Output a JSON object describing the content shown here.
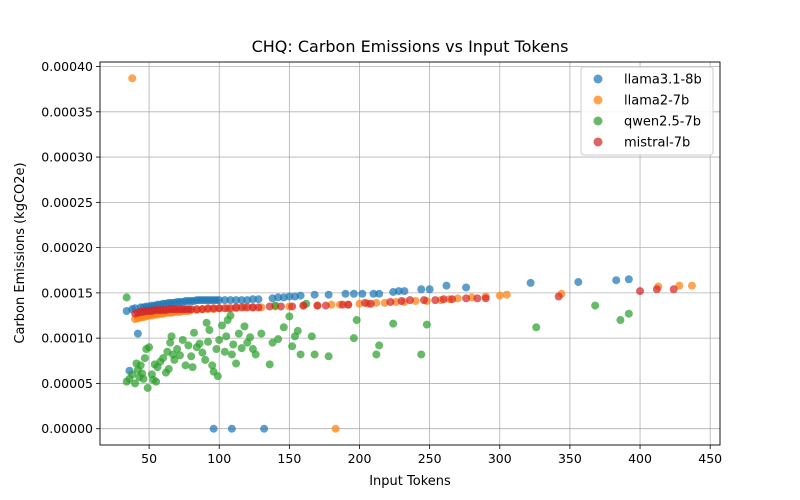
{
  "chart_data": {
    "type": "scatter",
    "title": "CHQ: Carbon Emissions vs Input Tokens",
    "xlabel": "Input Tokens",
    "ylabel": "Carbon Emissions (kgCO2e)",
    "xlim": [
      15,
      457
    ],
    "ylim": [
      -1.8e-05,
      0.000405
    ],
    "xticks": [
      50,
      100,
      150,
      200,
      250,
      300,
      350,
      400,
      450
    ],
    "yticks": [
      0,
      5e-05,
      0.0001,
      0.00015,
      0.0002,
      0.00025,
      0.0003,
      0.00035,
      0.0004
    ],
    "ytick_labels": [
      "0.00000",
      "0.00005",
      "0.00010",
      "0.00015",
      "0.00020",
      "0.00025",
      "0.00030",
      "0.00035",
      "0.00040"
    ],
    "grid": true,
    "legend_position": "top-right",
    "series": [
      {
        "name": "llama3.1-8b",
        "color": "#1f77b4",
        "points": [
          [
            34,
            0.00013
          ],
          [
            36,
            6.4e-05
          ],
          [
            38,
            0.000132
          ],
          [
            40,
            0.000133
          ],
          [
            42,
            0.000105
          ],
          [
            44,
            0.000134
          ],
          [
            46,
            0.000134
          ],
          [
            48,
            0.000135
          ],
          [
            50,
            0.000135
          ],
          [
            52,
            0.000136
          ],
          [
            54,
            0.000136
          ],
          [
            56,
            0.000137
          ],
          [
            58,
            0.000137
          ],
          [
            60,
            0.000138
          ],
          [
            62,
            0.000138
          ],
          [
            64,
            0.000139
          ],
          [
            66,
            0.000139
          ],
          [
            68,
            0.000139
          ],
          [
            70,
            0.00014
          ],
          [
            72,
            0.00014
          ],
          [
            74,
            0.00014
          ],
          [
            76,
            0.000141
          ],
          [
            78,
            0.000141
          ],
          [
            80,
            0.000141
          ],
          [
            82,
            0.000141
          ],
          [
            84,
            0.000142
          ],
          [
            86,
            0.000142
          ],
          [
            88,
            0.000142
          ],
          [
            90,
            0.000142
          ],
          [
            92,
            0.000142
          ],
          [
            94,
            0.000142
          ],
          [
            96,
            0.000142
          ],
          [
            98,
            0.000142
          ],
          [
            100,
            0.000142
          ],
          [
            104,
            0.000142
          ],
          [
            108,
            0.000142
          ],
          [
            112,
            0.000142
          ],
          [
            116,
            0.000142
          ],
          [
            120,
            0.000142
          ],
          [
            124,
            0.000143
          ],
          [
            128,
            0.000143
          ],
          [
            138,
            0.000144
          ],
          [
            142,
            0.000145
          ],
          [
            146,
            0.000145
          ],
          [
            150,
            0.000146
          ],
          [
            154,
            0.000146
          ],
          [
            158,
            0.000147
          ],
          [
            168,
            0.000148
          ],
          [
            178,
            0.000148
          ],
          [
            190,
            0.000149
          ],
          [
            196,
            0.000149
          ],
          [
            202,
            0.000149
          ],
          [
            210,
            0.000149
          ],
          [
            214,
            0.000149
          ],
          [
            224,
            0.000151
          ],
          [
            228,
            0.000152
          ],
          [
            232,
            0.000152
          ],
          [
            244,
            0.000154
          ],
          [
            250,
            0.000154
          ],
          [
            262,
            0.000158
          ],
          [
            276,
            0.000156
          ],
          [
            322,
            0.000161
          ],
          [
            356,
            0.000162
          ],
          [
            383,
            0.000164
          ],
          [
            392,
            0.000165
          ],
          [
            96,
            0.0
          ],
          [
            109,
            0.0
          ],
          [
            132,
            0.0
          ]
        ]
      },
      {
        "name": "llama2-7b",
        "color": "#ff7f0e",
        "points": [
          [
            38,
            0.000387
          ],
          [
            40,
            0.000121
          ],
          [
            42,
            0.000122
          ],
          [
            44,
            0.000123
          ],
          [
            46,
            0.000123
          ],
          [
            48,
            0.000124
          ],
          [
            50,
            0.000125
          ],
          [
            52,
            0.000125
          ],
          [
            54,
            0.000126
          ],
          [
            56,
            0.000126
          ],
          [
            58,
            0.000127
          ],
          [
            60,
            0.000127
          ],
          [
            62,
            0.000128
          ],
          [
            64,
            0.000128
          ],
          [
            66,
            0.000128
          ],
          [
            68,
            0.000129
          ],
          [
            70,
            0.000129
          ],
          [
            72,
            0.000129
          ],
          [
            74,
            0.00013
          ],
          [
            76,
            0.00013
          ],
          [
            78,
            0.00013
          ],
          [
            80,
            0.000131
          ],
          [
            84,
            0.000131
          ],
          [
            88,
            0.000132
          ],
          [
            92,
            0.000132
          ],
          [
            96,
            0.000132
          ],
          [
            100,
            0.000133
          ],
          [
            106,
            0.000133
          ],
          [
            112,
            0.000133
          ],
          [
            118,
            0.000134
          ],
          [
            124,
            0.000134
          ],
          [
            130,
            0.000134
          ],
          [
            140,
            0.000135
          ],
          [
            150,
            0.000135
          ],
          [
            160,
            0.000136
          ],
          [
            170,
            0.000136
          ],
          [
            180,
            0.000137
          ],
          [
            186,
            0.000137
          ],
          [
            192,
            0.000137
          ],
          [
            200,
            0.000138
          ],
          [
            206,
            0.000138
          ],
          [
            212,
            0.000139
          ],
          [
            218,
            0.000139
          ],
          [
            226,
            0.00014
          ],
          [
            232,
            0.00014
          ],
          [
            240,
            0.000141
          ],
          [
            248,
            0.000141
          ],
          [
            258,
            0.000142
          ],
          [
            264,
            0.000143
          ],
          [
            270,
            0.000144
          ],
          [
            280,
            0.000145
          ],
          [
            290,
            0.000146
          ],
          [
            300,
            0.000147
          ],
          [
            305,
            0.000148
          ],
          [
            344,
            0.000149
          ],
          [
            413,
            0.000157
          ],
          [
            428,
            0.000158
          ],
          [
            437,
            0.000158
          ],
          [
            183,
            0.0
          ]
        ]
      },
      {
        "name": "qwen2.5-7b",
        "color": "#2ca02c",
        "points": [
          [
            34,
            0.000145
          ],
          [
            34,
            5.2e-05
          ],
          [
            36,
            5.5e-05
          ],
          [
            38,
            6e-05
          ],
          [
            40,
            5e-05
          ],
          [
            41,
            7.2e-05
          ],
          [
            42,
            6.5e-05
          ],
          [
            43,
            5.7e-05
          ],
          [
            44,
            7e-05
          ],
          [
            45,
            6.1e-05
          ],
          [
            46,
            5.5e-05
          ],
          [
            47,
            7.8e-05
          ],
          [
            48,
            8.8e-05
          ],
          [
            49,
            4.5e-05
          ],
          [
            50,
            9e-05
          ],
          [
            52,
            6e-05
          ],
          [
            53,
            5.4e-05
          ],
          [
            54,
            7.1e-05
          ],
          [
            55,
            5.2e-05
          ],
          [
            56,
            6.8e-05
          ],
          [
            58,
            7.4e-05
          ],
          [
            60,
            7.8e-05
          ],
          [
            62,
            6.2e-05
          ],
          [
            63,
            8.5e-05
          ],
          [
            64,
            6.6e-05
          ],
          [
            65,
            9.5e-05
          ],
          [
            66,
            0.000102
          ],
          [
            67,
            8.2e-05
          ],
          [
            68,
            7.6e-05
          ],
          [
            70,
            8.8e-05
          ],
          [
            72,
            8.1e-05
          ],
          [
            74,
            9.8e-05
          ],
          [
            76,
            7e-05
          ],
          [
            78,
            9.2e-05
          ],
          [
            80,
            8e-05
          ],
          [
            81,
            6.8e-05
          ],
          [
            82,
            0.000106
          ],
          [
            84,
            9e-05
          ],
          [
            86,
            9.4e-05
          ],
          [
            88,
            8.4e-05
          ],
          [
            90,
            7.6e-05
          ],
          [
            91,
            0.000117
          ],
          [
            92,
            9.6e-05
          ],
          [
            93,
            0.000109
          ],
          [
            95,
            7e-05
          ],
          [
            96,
            6.3e-05
          ],
          [
            98,
            8.8e-05
          ],
          [
            99,
            5.8e-05
          ],
          [
            100,
            9.8e-05
          ],
          [
            102,
            0.000114
          ],
          [
            104,
            8.5e-05
          ],
          [
            105,
            0.000102
          ],
          [
            106,
            0.00012
          ],
          [
            108,
            0.000125
          ],
          [
            109,
            8.2e-05
          ],
          [
            110,
            9.3e-05
          ],
          [
            112,
            7.2e-05
          ],
          [
            114,
            0.000105
          ],
          [
            116,
            8.9e-05
          ],
          [
            118,
            0.000113
          ],
          [
            120,
            9.5e-05
          ],
          [
            122,
            0.000101
          ],
          [
            124,
            8.8e-05
          ],
          [
            126,
            8.2e-05
          ],
          [
            130,
            0.000105
          ],
          [
            136,
            7.1e-05
          ],
          [
            138,
            9.5e-05
          ],
          [
            140,
            0.000136
          ],
          [
            142,
            9.9e-05
          ],
          [
            146,
            0.000112
          ],
          [
            150,
            0.000124
          ],
          [
            152,
            9.1e-05
          ],
          [
            154,
            0.000102
          ],
          [
            156,
            0.000108
          ],
          [
            158,
            8.2e-05
          ],
          [
            162,
            0.000138
          ],
          [
            166,
            0.000102
          ],
          [
            168,
            8.2e-05
          ],
          [
            178,
            8e-05
          ],
          [
            196,
            0.0001
          ],
          [
            198,
            0.00012
          ],
          [
            212,
            8.2e-05
          ],
          [
            214,
            9.2e-05
          ],
          [
            224,
            0.000116
          ],
          [
            244,
            8.2e-05
          ],
          [
            248,
            0.000115
          ],
          [
            326,
            0.000112
          ],
          [
            368,
            0.000136
          ],
          [
            386,
            0.00012
          ],
          [
            392,
            0.000127
          ]
        ]
      },
      {
        "name": "mistral-7b",
        "color": "#d62728",
        "points": [
          [
            40,
            0.000127
          ],
          [
            42,
            0.000128
          ],
          [
            44,
            0.000129
          ],
          [
            46,
            0.000129
          ],
          [
            48,
            0.00013
          ],
          [
            50,
            0.00013
          ],
          [
            52,
            0.00013
          ],
          [
            54,
            0.000131
          ],
          [
            56,
            0.000131
          ],
          [
            58,
            0.000131
          ],
          [
            60,
            0.000131
          ],
          [
            62,
            0.000131
          ],
          [
            64,
            0.000132
          ],
          [
            66,
            0.000132
          ],
          [
            68,
            0.000132
          ],
          [
            70,
            0.000132
          ],
          [
            72,
            0.000132
          ],
          [
            74,
            0.000132
          ],
          [
            76,
            0.000132
          ],
          [
            78,
            0.000132
          ],
          [
            80,
            0.000132
          ],
          [
            84,
            0.000132
          ],
          [
            88,
            0.000132
          ],
          [
            92,
            0.000133
          ],
          [
            96,
            0.000133
          ],
          [
            100,
            0.000133
          ],
          [
            104,
            0.000133
          ],
          [
            108,
            0.000133
          ],
          [
            112,
            0.000134
          ],
          [
            116,
            0.000134
          ],
          [
            120,
            0.000134
          ],
          [
            124,
            0.000134
          ],
          [
            128,
            0.000134
          ],
          [
            136,
            0.000135
          ],
          [
            144,
            0.000135
          ],
          [
            152,
            0.000135
          ],
          [
            160,
            0.000136
          ],
          [
            170,
            0.000136
          ],
          [
            176,
            0.000136
          ],
          [
            188,
            0.000137
          ],
          [
            192,
            0.000137
          ],
          [
            204,
            0.000139
          ],
          [
            208,
            0.000138
          ],
          [
            222,
            0.00014
          ],
          [
            230,
            0.000141
          ],
          [
            236,
            0.000142
          ],
          [
            246,
            0.000142
          ],
          [
            254,
            0.000142
          ],
          [
            260,
            0.000143
          ],
          [
            266,
            0.000143
          ],
          [
            276,
            0.000144
          ],
          [
            284,
            0.000144
          ],
          [
            290,
            0.000144
          ],
          [
            342,
            0.000146
          ],
          [
            400,
            0.000152
          ],
          [
            412,
            0.000154
          ],
          [
            424,
            0.000154
          ]
        ]
      }
    ]
  }
}
